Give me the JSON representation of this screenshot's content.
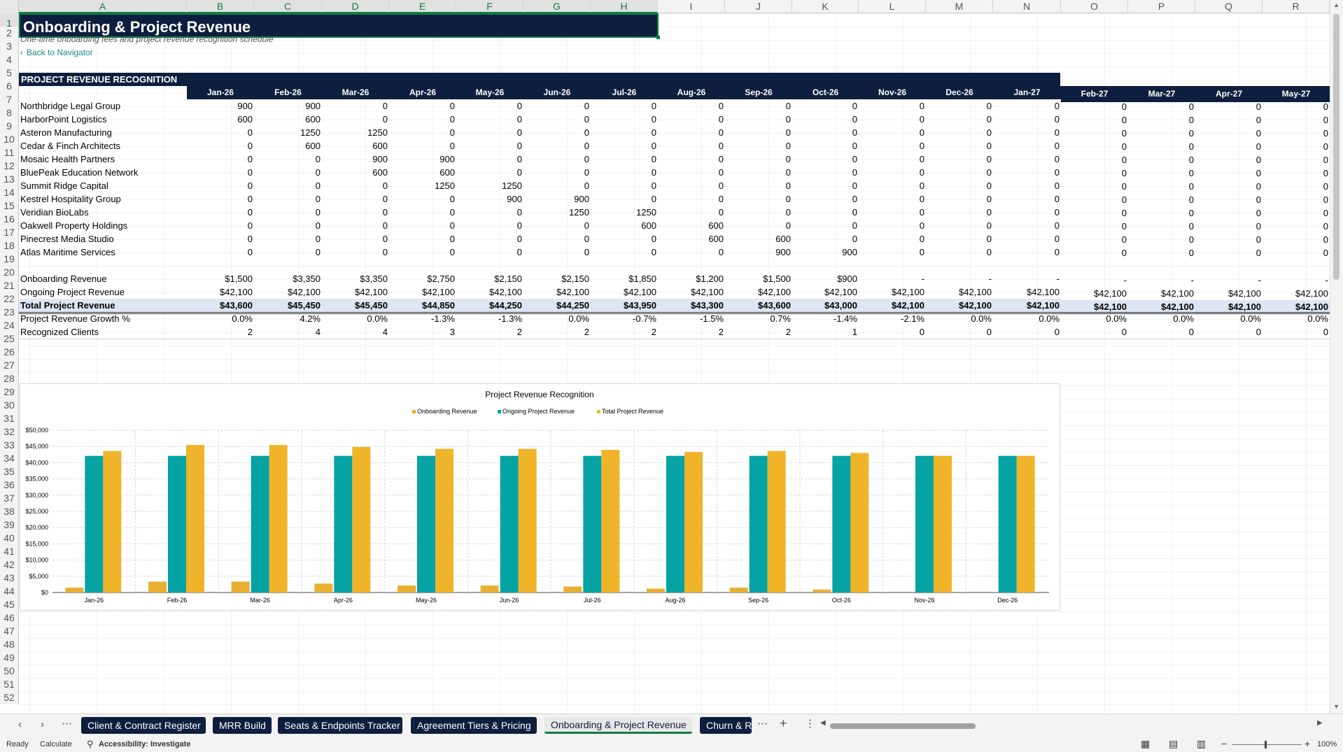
{
  "columns": [
    "A",
    "B",
    "C",
    "D",
    "E",
    "F",
    "G",
    "H",
    "I",
    "J",
    "K",
    "L",
    "M",
    "N",
    "O",
    "P",
    "Q",
    "R"
  ],
  "rows": [
    "1",
    "2",
    "3",
    "4",
    "5",
    "6",
    "7",
    "8",
    "9",
    "10",
    "11",
    "12",
    "13",
    "14",
    "15",
    "16",
    "17",
    "18",
    "19",
    "20",
    "21",
    "22",
    "23",
    "24",
    "25",
    "26",
    "27",
    "28",
    "29",
    "30",
    "31",
    "32",
    "33",
    "34",
    "35",
    "36",
    "37",
    "38",
    "39",
    "40",
    "41",
    "42",
    "43",
    "44",
    "45",
    "46",
    "47",
    "48",
    "49",
    "50",
    "51",
    "52"
  ],
  "sheet": {
    "title": "Onboarding & Project Revenue",
    "subtitle": "One-time onboarding fees and project revenue recognition schedule",
    "back_link": "Back to Navigator",
    "section_title": "PROJECT REVENUE RECOGNITION",
    "months": [
      "Jan-26",
      "Feb-26",
      "Mar-26",
      "Apr-26",
      "May-26",
      "Jun-26",
      "Jul-26",
      "Aug-26",
      "Sep-26",
      "Oct-26",
      "Nov-26",
      "Dec-26",
      "Jan-27",
      "Feb-27",
      "Mar-27",
      "Apr-27",
      "May-27"
    ],
    "clients": [
      {
        "name": "Northbridge Legal Group",
        "values": [
          "900",
          "900",
          "0",
          "0",
          "0",
          "0",
          "0",
          "0",
          "0",
          "0",
          "0",
          "0",
          "0",
          "0",
          "0",
          "0",
          "0"
        ]
      },
      {
        "name": "HarborPoint Logistics",
        "values": [
          "600",
          "600",
          "0",
          "0",
          "0",
          "0",
          "0",
          "0",
          "0",
          "0",
          "0",
          "0",
          "0",
          "0",
          "0",
          "0",
          "0"
        ]
      },
      {
        "name": "Asteron Manufacturing",
        "values": [
          "0",
          "1250",
          "1250",
          "0",
          "0",
          "0",
          "0",
          "0",
          "0",
          "0",
          "0",
          "0",
          "0",
          "0",
          "0",
          "0",
          "0"
        ]
      },
      {
        "name": "Cedar & Finch Architects",
        "values": [
          "0",
          "600",
          "600",
          "0",
          "0",
          "0",
          "0",
          "0",
          "0",
          "0",
          "0",
          "0",
          "0",
          "0",
          "0",
          "0",
          "0"
        ]
      },
      {
        "name": "Mosaic Health Partners",
        "values": [
          "0",
          "0",
          "900",
          "900",
          "0",
          "0",
          "0",
          "0",
          "0",
          "0",
          "0",
          "0",
          "0",
          "0",
          "0",
          "0",
          "0"
        ]
      },
      {
        "name": "BluePeak Education Network",
        "values": [
          "0",
          "0",
          "600",
          "600",
          "0",
          "0",
          "0",
          "0",
          "0",
          "0",
          "0",
          "0",
          "0",
          "0",
          "0",
          "0",
          "0"
        ]
      },
      {
        "name": "Summit Ridge Capital",
        "values": [
          "0",
          "0",
          "0",
          "1250",
          "1250",
          "0",
          "0",
          "0",
          "0",
          "0",
          "0",
          "0",
          "0",
          "0",
          "0",
          "0",
          "0"
        ]
      },
      {
        "name": "Kestrel Hospitality Group",
        "values": [
          "0",
          "0",
          "0",
          "0",
          "900",
          "900",
          "0",
          "0",
          "0",
          "0",
          "0",
          "0",
          "0",
          "0",
          "0",
          "0",
          "0"
        ]
      },
      {
        "name": "Veridian BioLabs",
        "values": [
          "0",
          "0",
          "0",
          "0",
          "0",
          "1250",
          "1250",
          "0",
          "0",
          "0",
          "0",
          "0",
          "0",
          "0",
          "0",
          "0",
          "0"
        ]
      },
      {
        "name": "Oakwell Property Holdings",
        "values": [
          "0",
          "0",
          "0",
          "0",
          "0",
          "0",
          "600",
          "600",
          "0",
          "0",
          "0",
          "0",
          "0",
          "0",
          "0",
          "0",
          "0"
        ]
      },
      {
        "name": "Pinecrest Media Studio",
        "values": [
          "0",
          "0",
          "0",
          "0",
          "0",
          "0",
          "0",
          "600",
          "600",
          "0",
          "0",
          "0",
          "0",
          "0",
          "0",
          "0",
          "0"
        ]
      },
      {
        "name": "Atlas Maritime Services",
        "values": [
          "0",
          "0",
          "0",
          "0",
          "0",
          "0",
          "0",
          "0",
          "900",
          "900",
          "0",
          "0",
          "0",
          "0",
          "0",
          "0",
          "0"
        ]
      }
    ],
    "summary": [
      {
        "name": "Onboarding Revenue",
        "values": [
          "$1,500",
          "$3,350",
          "$3,350",
          "$2,750",
          "$2,150",
          "$2,150",
          "$1,850",
          "$1,200",
          "$1,500",
          "$900",
          "-",
          "-",
          "-",
          "-",
          "-",
          "-",
          "-"
        ]
      },
      {
        "name": "Ongoing Project Revenue",
        "values": [
          "$42,100",
          "$42,100",
          "$42,100",
          "$42,100",
          "$42,100",
          "$42,100",
          "$42,100",
          "$42,100",
          "$42,100",
          "$42,100",
          "$42,100",
          "$42,100",
          "$42,100",
          "$42,100",
          "$42,100",
          "$42,100",
          "$42,100"
        ]
      },
      {
        "name": "Total Project Revenue",
        "values": [
          "$43,600",
          "$45,450",
          "$45,450",
          "$44,850",
          "$44,250",
          "$44,250",
          "$43,950",
          "$43,300",
          "$43,600",
          "$43,000",
          "$42,100",
          "$42,100",
          "$42,100",
          "$42,100",
          "$42,100",
          "$42,100",
          "$42,100"
        ]
      },
      {
        "name": "Project Revenue Growth %",
        "values": [
          "0.0%",
          "4.2%",
          "0.0%",
          "-1.3%",
          "-1.3%",
          "0.0%",
          "-0.7%",
          "-1.5%",
          "0.7%",
          "-1.4%",
          "-2.1%",
          "0.0%",
          "0.0%",
          "0.0%",
          "0.0%",
          "0.0%",
          "0.0%"
        ]
      },
      {
        "name": "Recognized Clients",
        "values": [
          "2",
          "4",
          "4",
          "3",
          "2",
          "2",
          "2",
          "2",
          "2",
          "1",
          "0",
          "0",
          "0",
          "0",
          "0",
          "0",
          "0"
        ]
      }
    ]
  },
  "chart_data": {
    "type": "bar",
    "title": "Project Revenue Recognition",
    "categories": [
      "Jan-26",
      "Feb-26",
      "Mar-26",
      "Apr-26",
      "May-26",
      "Jun-26",
      "Jul-26",
      "Aug-26",
      "Sep-26",
      "Oct-26",
      "Nov-26",
      "Dec-26"
    ],
    "series": [
      {
        "name": "Onboarding Revenue",
        "color": "#e8b030",
        "values": [
          1500,
          3350,
          3350,
          2750,
          2150,
          2150,
          1850,
          1200,
          1500,
          900,
          0,
          0
        ]
      },
      {
        "name": "Ongoing Project Revenue",
        "color": "#05a3a3",
        "values": [
          42100,
          42100,
          42100,
          42100,
          42100,
          42100,
          42100,
          42100,
          42100,
          42100,
          42100,
          42100
        ]
      },
      {
        "name": "Total Project Revenue",
        "color": "#efb42a",
        "values": [
          43600,
          45450,
          45450,
          44850,
          44250,
          44250,
          43950,
          43300,
          43600,
          43000,
          42100,
          42100
        ]
      }
    ],
    "ylim": [
      0,
      50000
    ],
    "yticks": [
      "$0",
      "$5,000",
      "$10,000",
      "$15,000",
      "$20,000",
      "$25,000",
      "$30,000",
      "$35,000",
      "$40,000",
      "$45,000",
      "$50,000"
    ],
    "legend": "top",
    "grid": true
  },
  "tabs": [
    {
      "label": "Client & Contract Register",
      "active": false
    },
    {
      "label": "MRR Build",
      "active": false
    },
    {
      "label": "Seats & Endpoints Tracker",
      "active": false
    },
    {
      "label": "Agreement Tiers & Pricing",
      "active": false
    },
    {
      "label": "Onboarding & Project Revenue",
      "active": true
    },
    {
      "label": "Churn & R",
      "active": false
    }
  ],
  "status": {
    "ready": "Ready",
    "calculate": "Calculate",
    "accessibility": "Accessibility: Investigate",
    "zoom": "100%"
  },
  "colors": {
    "header_navy": "#0e1e3e",
    "accent_green": "#107c41",
    "teal": "#05a3a3",
    "gold": "#efb42a",
    "link": "#1f8a8a"
  }
}
